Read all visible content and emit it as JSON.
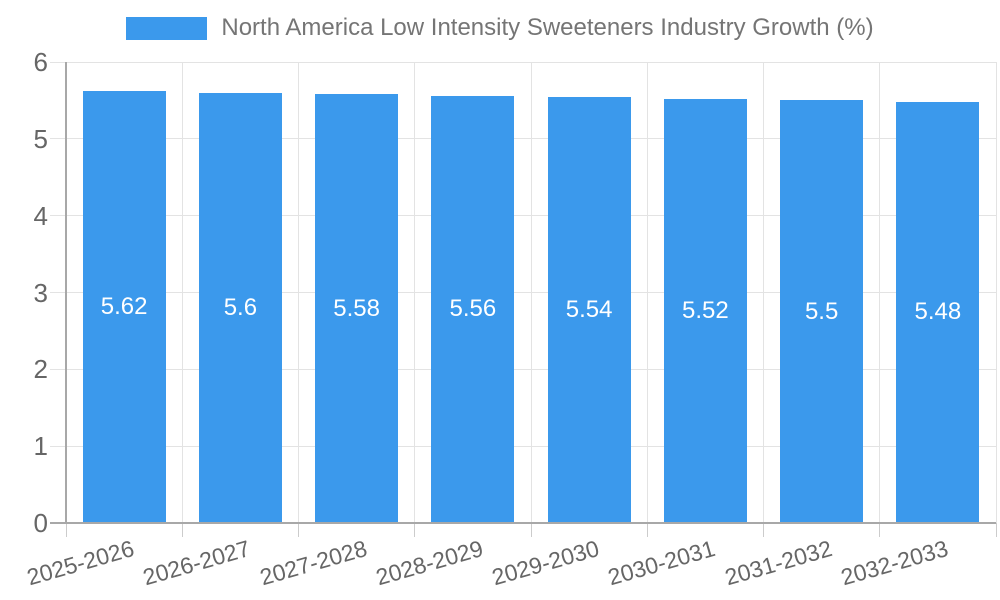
{
  "legend": {
    "label": "North America Low Intensity Sweeteners Industry Growth (%)"
  },
  "colors": {
    "bar": "#3B99EC",
    "grid": "#E3E3E3",
    "axis": "#A8A8A8",
    "tick_text": "#666666",
    "legend_text": "#757575",
    "bar_value_text": "#FFFFFF"
  },
  "chart_data": {
    "type": "bar",
    "title": "North America Low Intensity Sweeteners Industry Growth (%)",
    "categories": [
      "2025-2026",
      "2026-2027",
      "2027-2028",
      "2028-2029",
      "2029-2030",
      "2030-2031",
      "2031-2032",
      "2032-2033"
    ],
    "values": [
      5.62,
      5.6,
      5.58,
      5.56,
      5.54,
      5.52,
      5.5,
      5.48
    ],
    "value_labels": [
      "5.62",
      "5.6",
      "5.58",
      "5.56",
      "5.54",
      "5.52",
      "5.5",
      "5.48"
    ],
    "xlabel": "",
    "ylabel": "",
    "ylim": [
      0,
      6
    ],
    "yticks": [
      0,
      1,
      2,
      3,
      4,
      5,
      6
    ],
    "grid": true,
    "legend_position": "top",
    "value_label_position": "inside-center",
    "xtick_rotation_deg": -16
  }
}
